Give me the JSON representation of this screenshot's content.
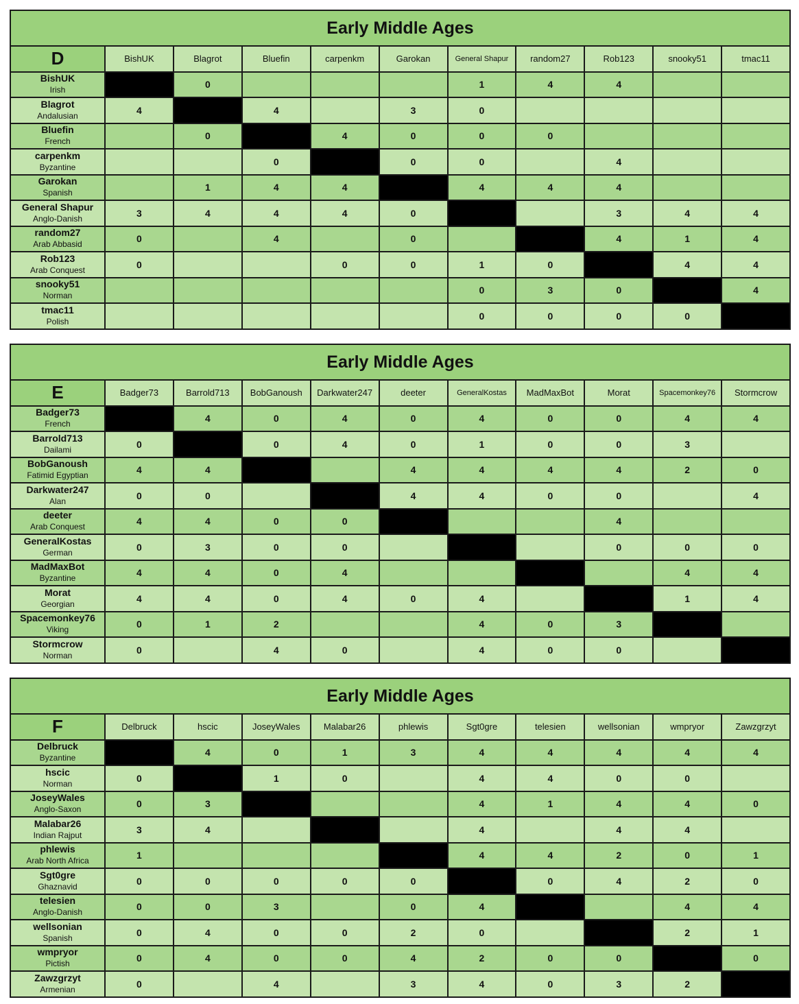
{
  "colors": {
    "title": "#9bd17c",
    "row_dark": "#a9d78f",
    "row_light": "#c4e4ae",
    "diagonal": "#000000"
  },
  "tables": [
    {
      "title": "Early Middle Ages",
      "group": "D",
      "columns": [
        "BishUK",
        "Blagrot",
        "Bluefin",
        "carpenkm",
        "Garokan",
        "General Shapur",
        "random27",
        "Rob123",
        "snooky51",
        "tmac11"
      ],
      "rows": [
        {
          "name": "BishUK",
          "civ": "Irish",
          "cells": [
            "",
            "0",
            "",
            "",
            "",
            "1",
            "4",
            "4",
            "",
            ""
          ]
        },
        {
          "name": "Blagrot",
          "civ": "Andalusian",
          "cells": [
            "4",
            "",
            "4",
            "",
            "3",
            "0",
            "",
            "",
            "",
            ""
          ]
        },
        {
          "name": "Bluefin",
          "civ": "French",
          "cells": [
            "",
            "0",
            "",
            "4",
            "0",
            "0",
            "0",
            "",
            "",
            ""
          ]
        },
        {
          "name": "carpenkm",
          "civ": "Byzantine",
          "cells": [
            "",
            "",
            "0",
            "",
            "0",
            "0",
            "",
            "4",
            "",
            ""
          ]
        },
        {
          "name": "Garokan",
          "civ": "Spanish",
          "cells": [
            "",
            "1",
            "4",
            "4",
            "",
            "4",
            "4",
            "4",
            "",
            ""
          ]
        },
        {
          "name": "General Shapur",
          "civ": "Anglo-Danish",
          "cells": [
            "3",
            "4",
            "4",
            "4",
            "0",
            "",
            "",
            "3",
            "4",
            "4"
          ]
        },
        {
          "name": "random27",
          "civ": "Arab Abbasid",
          "cells": [
            "0",
            "",
            "4",
            "",
            "0",
            "",
            "",
            "4",
            "1",
            "4"
          ]
        },
        {
          "name": "Rob123",
          "civ": "Arab Conquest",
          "cells": [
            "0",
            "",
            "",
            "0",
            "0",
            "1",
            "0",
            "",
            "4",
            "4"
          ]
        },
        {
          "name": "snooky51",
          "civ": "Norman",
          "cells": [
            "",
            "",
            "",
            "",
            "",
            "0",
            "3",
            "0",
            "",
            "4"
          ]
        },
        {
          "name": "tmac11",
          "civ": "Polish",
          "cells": [
            "",
            "",
            "",
            "",
            "",
            "0",
            "0",
            "0",
            "0",
            ""
          ]
        }
      ]
    },
    {
      "title": "Early Middle Ages",
      "group": "E",
      "columns": [
        "Badger73",
        "Barrold713",
        "BobGanoush",
        "Darkwater247",
        "deeter",
        "GeneralKostas",
        "MadMaxBot",
        "Morat",
        "Spacemonkey76",
        "Stormcrow"
      ],
      "rows": [
        {
          "name": "Badger73",
          "civ": "French",
          "cells": [
            "",
            "4",
            "0",
            "4",
            "0",
            "4",
            "0",
            "0",
            "4",
            "4"
          ]
        },
        {
          "name": "Barrold713",
          "civ": "Dailami",
          "cells": [
            "0",
            "",
            "0",
            "4",
            "0",
            "1",
            "0",
            "0",
            "3",
            ""
          ]
        },
        {
          "name": "BobGanoush",
          "civ": "Fatimid Egyptian",
          "cells": [
            "4",
            "4",
            "",
            "",
            "4",
            "4",
            "4",
            "4",
            "2",
            "0"
          ]
        },
        {
          "name": "Darkwater247",
          "civ": "Alan",
          "cells": [
            "0",
            "0",
            "",
            "",
            "4",
            "4",
            "0",
            "0",
            "",
            "4"
          ]
        },
        {
          "name": "deeter",
          "civ": "Arab Conquest",
          "cells": [
            "4",
            "4",
            "0",
            "0",
            "",
            "",
            "",
            "4",
            "",
            ""
          ]
        },
        {
          "name": "GeneralKostas",
          "civ": "German",
          "cells": [
            "0",
            "3",
            "0",
            "0",
            "",
            "",
            "",
            "0",
            "0",
            "0"
          ]
        },
        {
          "name": "MadMaxBot",
          "civ": "Byzantine",
          "cells": [
            "4",
            "4",
            "0",
            "4",
            "",
            "",
            "",
            "",
            "4",
            "4"
          ]
        },
        {
          "name": "Morat",
          "civ": "Georgian",
          "cells": [
            "4",
            "4",
            "0",
            "4",
            "0",
            "4",
            "",
            "",
            "1",
            "4"
          ]
        },
        {
          "name": "Spacemonkey76",
          "civ": "Viking",
          "cells": [
            "0",
            "1",
            "2",
            "",
            "",
            "4",
            "0",
            "3",
            "",
            ""
          ]
        },
        {
          "name": "Stormcrow",
          "civ": "Norman",
          "cells": [
            "0",
            "",
            "4",
            "0",
            "",
            "4",
            "0",
            "0",
            "",
            ""
          ]
        }
      ]
    },
    {
      "title": "Early Middle Ages",
      "group": "F",
      "columns": [
        "Delbruck",
        "hscic",
        "JoseyWales",
        "Malabar26",
        "phlewis",
        "Sgt0gre",
        "telesien",
        "wellsonian",
        "wmpryor",
        "Zawzgrzyt"
      ],
      "rows": [
        {
          "name": "Delbruck",
          "civ": "Byzantine",
          "cells": [
            "",
            "4",
            "0",
            "1",
            "3",
            "4",
            "4",
            "4",
            "4",
            "4"
          ]
        },
        {
          "name": "hscic",
          "civ": "Norman",
          "cells": [
            "0",
            "",
            "1",
            "0",
            "",
            "4",
            "4",
            "0",
            "0",
            ""
          ]
        },
        {
          "name": "JoseyWales",
          "civ": "Anglo-Saxon",
          "cells": [
            "0",
            "3",
            "",
            "",
            "",
            "4",
            "1",
            "4",
            "4",
            "0"
          ]
        },
        {
          "name": "Malabar26",
          "civ": "Indian Rajput",
          "cells": [
            "3",
            "4",
            "",
            "",
            "",
            "4",
            "",
            "4",
            "4",
            ""
          ]
        },
        {
          "name": "phlewis",
          "civ": "Arab North Africa",
          "cells": [
            "1",
            "",
            "",
            "",
            "",
            "4",
            "4",
            "2",
            "0",
            "1"
          ]
        },
        {
          "name": "Sgt0gre",
          "civ": "Ghaznavid",
          "cells": [
            "0",
            "0",
            "0",
            "0",
            "0",
            "",
            "0",
            "4",
            "2",
            "0"
          ]
        },
        {
          "name": "telesien",
          "civ": "Anglo-Danish",
          "cells": [
            "0",
            "0",
            "3",
            "",
            "0",
            "4",
            "",
            "",
            "4",
            "4"
          ]
        },
        {
          "name": "wellsonian",
          "civ": "Spanish",
          "cells": [
            "0",
            "4",
            "0",
            "0",
            "2",
            "0",
            "",
            "",
            "2",
            "1"
          ]
        },
        {
          "name": "wmpryor",
          "civ": "Pictish",
          "cells": [
            "0",
            "4",
            "0",
            "0",
            "4",
            "2",
            "0",
            "0",
            "",
            "0"
          ]
        },
        {
          "name": "Zawzgrzyt",
          "civ": "Armenian",
          "cells": [
            "0",
            "",
            "4",
            "",
            "3",
            "4",
            "0",
            "3",
            "2",
            ""
          ]
        }
      ]
    }
  ]
}
